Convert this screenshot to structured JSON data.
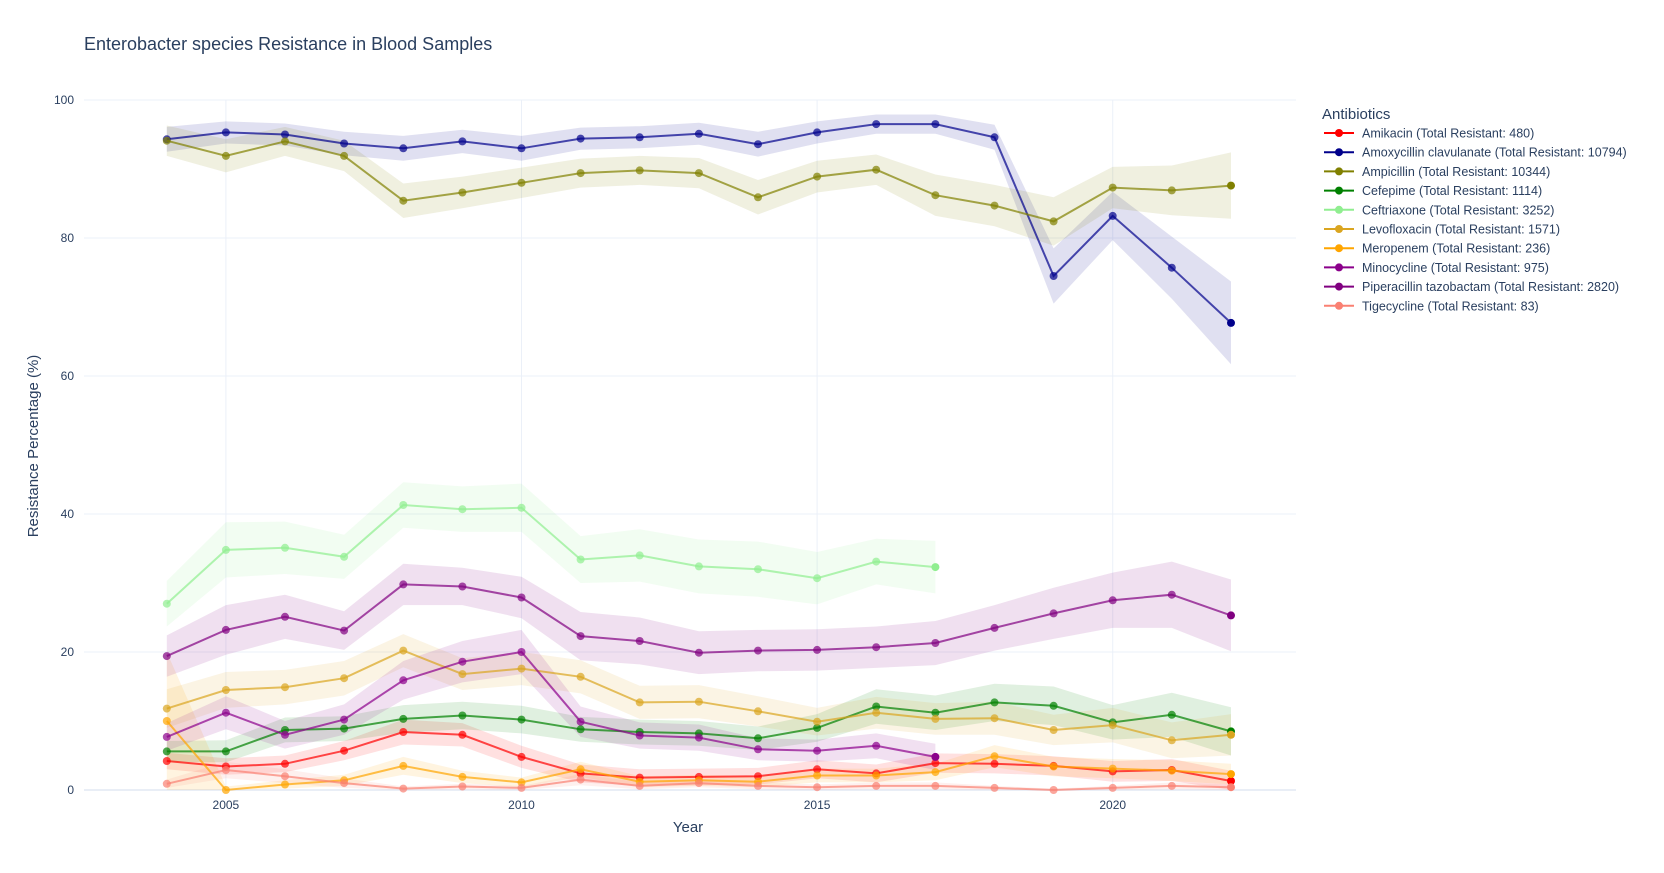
{
  "chart_data": {
    "type": "line",
    "title": "Enterobacter species Resistance in Blood Samples",
    "xlabel": "Year",
    "ylabel": "Resistance Percentage (%)",
    "xlim": [
      2002.6,
      2023.1
    ],
    "ylim": [
      0,
      100
    ],
    "x_ticks": [
      2005,
      2010,
      2015,
      2020
    ],
    "y_ticks": [
      0,
      20,
      40,
      60,
      80,
      100
    ],
    "grid": true,
    "legend": {
      "title": "Antibiotics",
      "position": "right"
    },
    "series": [
      {
        "name": "Amikacin (Total Resistant: 480)",
        "color": "#ff0000",
        "x": [
          2004,
          2005,
          2006,
          2007,
          2008,
          2009,
          2010,
          2011,
          2012,
          2013,
          2014,
          2015,
          2016,
          2017,
          2018,
          2019,
          2020,
          2021,
          2022
        ],
        "y": [
          4.2,
          3.4,
          3.8,
          5.7,
          8.4,
          8.0,
          4.8,
          2.4,
          1.8,
          1.9,
          2.0,
          3.0,
          2.4,
          3.9,
          3.8,
          3.5,
          2.7,
          2.9,
          1.3
        ],
        "band": [
          1.2,
          1.2,
          1.2,
          1.4,
          1.8,
          1.7,
          1.6,
          1.3,
          1.2,
          1.2,
          1.2,
          1.3,
          1.3,
          1.4,
          1.4,
          1.4,
          1.5,
          1.6,
          1.5
        ]
      },
      {
        "name": "Amoxycillin clavulanate (Total Resistant: 10794)",
        "color": "#00008b",
        "x": [
          2004,
          2005,
          2006,
          2007,
          2008,
          2009,
          2010,
          2011,
          2012,
          2013,
          2014,
          2015,
          2016,
          2017,
          2018,
          2019,
          2020,
          2021,
          2022
        ],
        "y": [
          94.3,
          95.3,
          95.0,
          93.7,
          93.0,
          94.0,
          93.0,
          94.4,
          94.6,
          95.1,
          93.6,
          95.3,
          96.5,
          96.5,
          94.6,
          74.5,
          83.2,
          75.7,
          67.7
        ],
        "band": [
          1.8,
          1.6,
          1.6,
          1.7,
          1.8,
          1.7,
          1.8,
          1.6,
          1.6,
          1.6,
          1.8,
          1.6,
          1.4,
          1.4,
          1.8,
          4.0,
          3.5,
          4.5,
          6.0
        ]
      },
      {
        "name": "Ampicillin (Total Resistant: 10344)",
        "color": "#808000",
        "x": [
          2004,
          2005,
          2006,
          2007,
          2008,
          2009,
          2010,
          2011,
          2012,
          2013,
          2014,
          2015,
          2016,
          2017,
          2018,
          2019,
          2020,
          2021,
          2022
        ],
        "y": [
          94.1,
          91.9,
          94.0,
          91.9,
          85.4,
          86.6,
          88.0,
          89.4,
          89.8,
          89.4,
          85.9,
          88.9,
          89.9,
          86.2,
          84.7,
          82.4,
          87.3,
          86.9,
          87.6
        ],
        "band": [
          2.2,
          2.4,
          2.1,
          2.2,
          2.5,
          2.3,
          2.2,
          2.1,
          2.1,
          2.2,
          2.5,
          2.3,
          2.2,
          3.0,
          3.0,
          3.5,
          3.0,
          3.6,
          4.8
        ]
      },
      {
        "name": "Cefepime (Total Resistant: 1114)",
        "color": "#008000",
        "x": [
          2004,
          2005,
          2006,
          2007,
          2008,
          2009,
          2010,
          2011,
          2012,
          2013,
          2014,
          2015,
          2016,
          2017,
          2018,
          2019,
          2020,
          2021,
          2022
        ],
        "y": [
          5.6,
          5.6,
          8.7,
          8.9,
          10.3,
          10.8,
          10.2,
          8.8,
          8.4,
          8.2,
          7.5,
          9.0,
          12.1,
          11.2,
          12.7,
          12.2,
          9.8,
          10.9,
          8.5
        ],
        "band": [
          1.5,
          1.6,
          1.8,
          1.8,
          2.0,
          2.0,
          2.0,
          1.8,
          1.8,
          1.8,
          1.7,
          2.0,
          2.5,
          2.5,
          2.7,
          2.8,
          2.5,
          3.2,
          3.5
        ]
      },
      {
        "name": "Ceftriaxone (Total Resistant: 3252)",
        "color": "#90ee90",
        "x": [
          2004,
          2005,
          2006,
          2007,
          2008,
          2009,
          2010,
          2011,
          2012,
          2013,
          2014,
          2015,
          2016,
          2017
        ],
        "y": [
          27.0,
          34.8,
          35.1,
          33.8,
          41.3,
          40.7,
          40.9,
          33.4,
          34.0,
          32.4,
          32.0,
          30.7,
          33.1,
          32.3
        ],
        "band": [
          3.3,
          4.0,
          3.8,
          3.2,
          3.3,
          3.3,
          3.5,
          3.4,
          3.8,
          3.9,
          4.0,
          3.8,
          3.3,
          3.8
        ]
      },
      {
        "name": "Levofloxacin (Total Resistant: 1571)",
        "color": "#daa520",
        "x": [
          2004,
          2005,
          2006,
          2007,
          2008,
          2009,
          2010,
          2011,
          2012,
          2013,
          2014,
          2015,
          2016,
          2017,
          2018,
          2019,
          2020,
          2021,
          2022
        ],
        "y": [
          11.8,
          14.5,
          14.9,
          16.2,
          20.2,
          16.8,
          17.6,
          16.4,
          12.7,
          12.8,
          11.4,
          9.9,
          11.2,
          10.3,
          10.4,
          8.7,
          9.4,
          7.2,
          8.0
        ],
        "band": [
          2.8,
          2.6,
          2.5,
          2.5,
          2.4,
          2.3,
          2.4,
          2.4,
          2.4,
          2.4,
          2.2,
          2.0,
          2.3,
          2.3,
          2.4,
          2.2,
          2.5,
          2.6,
          3.0
        ]
      },
      {
        "name": "Meropenem (Total Resistant: 236)",
        "color": "#ffa500",
        "x": [
          2004,
          2005,
          2006,
          2007,
          2008,
          2009,
          2010,
          2011,
          2012,
          2013,
          2014,
          2015,
          2016,
          2017,
          2018,
          2019,
          2020,
          2021,
          2022
        ],
        "y": [
          10.0,
          0.0,
          0.8,
          1.4,
          3.5,
          1.9,
          1.1,
          3.0,
          1.2,
          1.4,
          1.2,
          2.1,
          2.1,
          2.6,
          4.9,
          3.4,
          3.1,
          2.8,
          2.3
        ],
        "band": [
          10.0,
          0.5,
          0.6,
          0.8,
          1.3,
          0.9,
          0.7,
          1.1,
          0.8,
          0.8,
          0.8,
          1.0,
          1.0,
          1.2,
          1.6,
          1.4,
          1.4,
          1.5,
          1.5
        ]
      },
      {
        "name": "Minocycline (Total Resistant: 975)",
        "color": "#8b008b",
        "x": [
          2004,
          2005,
          2006,
          2007,
          2008,
          2009,
          2010,
          2011,
          2012,
          2013,
          2014,
          2015,
          2016,
          2017
        ],
        "y": [
          7.7,
          11.2,
          8.0,
          10.2,
          15.9,
          18.6,
          20.0,
          9.9,
          7.9,
          7.6,
          5.9,
          5.7,
          6.4,
          4.8
        ],
        "band": [
          2.0,
          2.4,
          2.0,
          2.2,
          2.8,
          3.0,
          3.2,
          2.2,
          1.9,
          1.9,
          1.6,
          1.6,
          1.8,
          1.9
        ]
      },
      {
        "name": "Piperacillin tazobactam (Total Resistant: 2820)",
        "color": "#800080",
        "x": [
          2004,
          2005,
          2006,
          2007,
          2008,
          2009,
          2010,
          2011,
          2012,
          2013,
          2014,
          2015,
          2016,
          2017,
          2018,
          2019,
          2020,
          2021,
          2022
        ],
        "y": [
          19.4,
          23.2,
          25.1,
          23.1,
          29.8,
          29.5,
          27.9,
          22.3,
          21.6,
          19.9,
          20.2,
          20.3,
          20.7,
          21.3,
          23.5,
          25.6,
          27.5,
          28.3,
          25.3
        ],
        "band": [
          3.0,
          3.6,
          3.2,
          2.8,
          3.0,
          2.7,
          3.0,
          3.5,
          3.4,
          3.1,
          3.0,
          3.0,
          3.0,
          3.2,
          3.3,
          3.7,
          4.0,
          4.8,
          5.2
        ]
      },
      {
        "name": "Tigecycline (Total Resistant: 83)",
        "color": "#fa8072",
        "x": [
          2004,
          2005,
          2006,
          2007,
          2008,
          2009,
          2010,
          2011,
          2012,
          2013,
          2014,
          2015,
          2016,
          2017,
          2018,
          2019,
          2020,
          2021,
          2022
        ],
        "y": [
          0.9,
          2.9,
          2.0,
          1.0,
          0.2,
          0.5,
          0.3,
          1.5,
          0.6,
          1.0,
          0.6,
          0.4,
          0.6,
          0.6,
          0.3,
          0.0,
          0.3,
          0.6,
          0.4
        ],
        "band": [
          0.6,
          1.2,
          1.0,
          0.7,
          0.3,
          0.4,
          0.3,
          0.8,
          0.5,
          0.6,
          0.5,
          0.4,
          0.5,
          0.5,
          0.3,
          0.2,
          0.3,
          0.5,
          0.4
        ]
      }
    ]
  }
}
